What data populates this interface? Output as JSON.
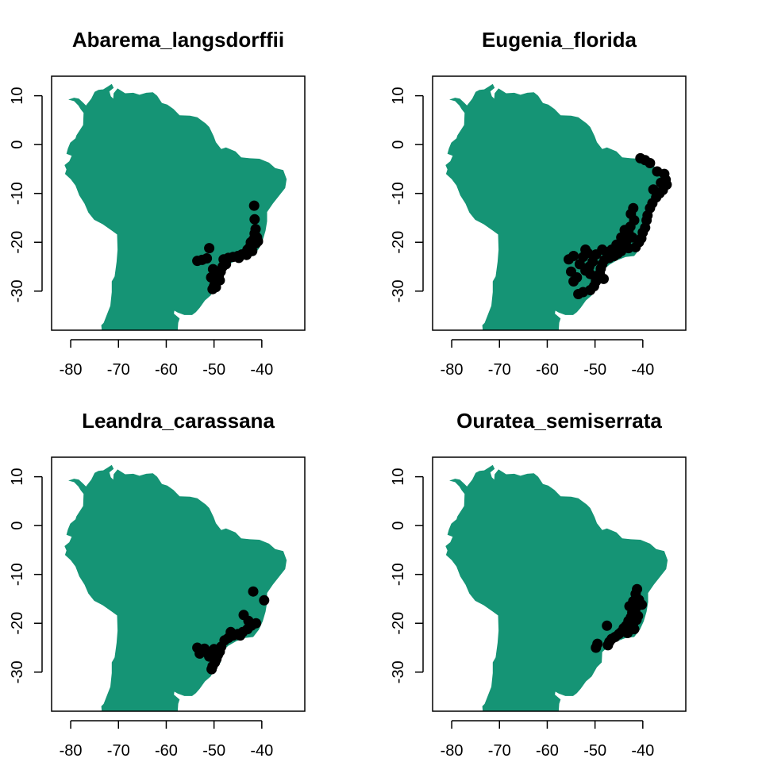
{
  "colors": {
    "land": "#159475",
    "points": "#000000",
    "axes": "#000000",
    "background": "#ffffff"
  },
  "chart_data": [
    {
      "type": "scatter",
      "title": "Abarema_langsdorffii",
      "xlabel": "",
      "ylabel": "",
      "xlim": [
        -84,
        -31
      ],
      "ylim": [
        -38,
        14
      ],
      "xticks": [
        -80,
        -70,
        -60,
        -50,
        -40
      ],
      "yticks": [
        10,
        0,
        -10,
        -20,
        -30
      ],
      "grid": false,
      "background_layer": "land-map",
      "points": [
        [
          -41.6,
          -12.5
        ],
        [
          -41.5,
          -15.3
        ],
        [
          -41.3,
          -17.3
        ],
        [
          -41.5,
          -18.2
        ],
        [
          -41.0,
          -19.0
        ],
        [
          -41.8,
          -19.5
        ],
        [
          -42.3,
          -20.0
        ],
        [
          -41.2,
          -20.2
        ],
        [
          -40.8,
          -19.8
        ],
        [
          -42.5,
          -21.0
        ],
        [
          -43.0,
          -21.5
        ],
        [
          -42.0,
          -21.8
        ],
        [
          -43.5,
          -22.3
        ],
        [
          -44.2,
          -22.5
        ],
        [
          -45.0,
          -22.8
        ],
        [
          -46.0,
          -23.0
        ],
        [
          -47.0,
          -23.2
        ],
        [
          -48.0,
          -23.5
        ],
        [
          -47.5,
          -24.5
        ],
        [
          -48.2,
          -25.0
        ],
        [
          -48.6,
          -26.0
        ],
        [
          -49.0,
          -26.8
        ],
        [
          -49.3,
          -27.5
        ],
        [
          -49.8,
          -28.3
        ],
        [
          -50.0,
          -29.0
        ],
        [
          -50.3,
          -29.6
        ],
        [
          -49.6,
          -29.2
        ],
        [
          -48.8,
          -27.8
        ],
        [
          -50.6,
          -27.2
        ],
        [
          -51.0,
          -21.2
        ],
        [
          -51.5,
          -23.3
        ],
        [
          -52.5,
          -23.6
        ],
        [
          -53.5,
          -23.8
        ],
        [
          -50.2,
          -25.5
        ],
        [
          -44.8,
          -23.2
        ],
        [
          -43.2,
          -22.6
        ]
      ]
    },
    {
      "type": "scatter",
      "title": "Eugenia_florida",
      "xlabel": "",
      "ylabel": "",
      "xlim": [
        -84,
        -31
      ],
      "ylim": [
        -38,
        14
      ],
      "xticks": [
        -80,
        -70,
        -60,
        -50,
        -40
      ],
      "yticks": [
        10,
        0,
        -10,
        -20,
        -30
      ],
      "grid": false,
      "background_layer": "land-map",
      "points": [
        [
          -40.5,
          -2.8
        ],
        [
          -39.5,
          -3.2
        ],
        [
          -38.5,
          -3.8
        ],
        [
          -37.0,
          -5.5
        ],
        [
          -35.5,
          -6.0
        ],
        [
          -35.2,
          -7.2
        ],
        [
          -35.0,
          -8.2
        ],
        [
          -35.8,
          -9.3
        ],
        [
          -36.5,
          -10.0
        ],
        [
          -37.2,
          -10.8
        ],
        [
          -38.0,
          -12.0
        ],
        [
          -38.5,
          -13.0
        ],
        [
          -39.0,
          -14.5
        ],
        [
          -39.2,
          -15.5
        ],
        [
          -39.5,
          -17.0
        ],
        [
          -40.0,
          -18.0
        ],
        [
          -40.3,
          -19.2
        ],
        [
          -40.8,
          -20.0
        ],
        [
          -41.5,
          -21.0
        ],
        [
          -42.0,
          -13.0
        ],
        [
          -42.5,
          -14.2
        ],
        [
          -41.8,
          -15.5
        ],
        [
          -42.6,
          -16.8
        ],
        [
          -43.0,
          -18.0
        ],
        [
          -42.2,
          -19.0
        ],
        [
          -43.5,
          -19.8
        ],
        [
          -44.0,
          -20.5
        ],
        [
          -43.0,
          -21.2
        ],
        [
          -44.5,
          -21.8
        ],
        [
          -45.2,
          -22.3
        ],
        [
          -46.0,
          -22.8
        ],
        [
          -47.0,
          -23.2
        ],
        [
          -48.0,
          -23.6
        ],
        [
          -48.5,
          -24.5
        ],
        [
          -48.8,
          -25.4
        ],
        [
          -49.0,
          -26.4
        ],
        [
          -49.5,
          -27.2
        ],
        [
          -49.8,
          -28.0
        ],
        [
          -50.2,
          -29.0
        ],
        [
          -51.0,
          -29.8
        ],
        [
          -52.5,
          -30.2
        ],
        [
          -53.5,
          -30.6
        ],
        [
          -54.5,
          -28.0
        ],
        [
          -55.0,
          -26.0
        ],
        [
          -55.5,
          -23.5
        ],
        [
          -54.5,
          -22.8
        ],
        [
          -53.2,
          -24.5
        ],
        [
          -52.0,
          -25.8
        ],
        [
          -51.0,
          -26.5
        ],
        [
          -50.5,
          -24.0
        ],
        [
          -49.8,
          -22.5
        ],
        [
          -48.5,
          -21.5
        ],
        [
          -47.5,
          -22.0
        ],
        [
          -46.5,
          -21.5
        ],
        [
          -45.5,
          -20.5
        ],
        [
          -44.5,
          -19.0
        ],
        [
          -43.8,
          -17.5
        ],
        [
          -51.5,
          -22.2
        ],
        [
          -52.0,
          -21.5
        ],
        [
          -52.5,
          -23.0
        ],
        [
          -51.2,
          -25.0
        ],
        [
          -50.0,
          -27.0
        ],
        [
          -48.2,
          -27.5
        ],
        [
          -53.8,
          -27.2
        ],
        [
          -36.2,
          -7.8
        ],
        [
          -37.8,
          -9.2
        ]
      ]
    },
    {
      "type": "scatter",
      "title": "Leandra_carassana",
      "xlabel": "",
      "ylabel": "",
      "xlim": [
        -84,
        -31
      ],
      "ylim": [
        -38,
        14
      ],
      "xticks": [
        -80,
        -70,
        -60,
        -50,
        -40
      ],
      "yticks": [
        10,
        0,
        -10,
        -20,
        -30
      ],
      "grid": false,
      "background_layer": "land-map",
      "points": [
        [
          -41.8,
          -13.5
        ],
        [
          -39.5,
          -15.3
        ],
        [
          -43.8,
          -18.3
        ],
        [
          -41.2,
          -20.0
        ],
        [
          -42.2,
          -20.5
        ],
        [
          -43.0,
          -21.2
        ],
        [
          -44.0,
          -21.8
        ],
        [
          -45.0,
          -22.2
        ],
        [
          -46.0,
          -22.5
        ],
        [
          -47.0,
          -23.0
        ],
        [
          -47.8,
          -23.5
        ],
        [
          -48.5,
          -24.8
        ],
        [
          -48.8,
          -25.8
        ],
        [
          -49.2,
          -26.5
        ],
        [
          -49.5,
          -27.3
        ],
        [
          -49.8,
          -28.0
        ],
        [
          -50.3,
          -28.8
        ],
        [
          -50.5,
          -29.4
        ],
        [
          -51.0,
          -26.8
        ],
        [
          -51.5,
          -26.0
        ],
        [
          -52.0,
          -25.2
        ],
        [
          -52.5,
          -25.8
        ],
        [
          -53.0,
          -26.2
        ],
        [
          -53.5,
          -25.0
        ],
        [
          -50.0,
          -25.3
        ],
        [
          -49.8,
          -27.8
        ],
        [
          -46.5,
          -21.8
        ],
        [
          -44.5,
          -22.5
        ],
        [
          -42.8,
          -19.5
        ]
      ]
    },
    {
      "type": "scatter",
      "title": "Ouratea_semiserrata",
      "xlabel": "",
      "ylabel": "",
      "xlim": [
        -84,
        -31
      ],
      "ylim": [
        -38,
        14
      ],
      "xticks": [
        -80,
        -70,
        -60,
        -50,
        -40
      ],
      "yticks": [
        10,
        0,
        -10,
        -20,
        -30
      ],
      "grid": false,
      "background_layer": "land-map",
      "points": [
        [
          -41.2,
          -13.0
        ],
        [
          -41.5,
          -14.0
        ],
        [
          -40.8,
          -15.2
        ],
        [
          -42.0,
          -15.5
        ],
        [
          -40.2,
          -16.2
        ],
        [
          -41.5,
          -17.0
        ],
        [
          -42.2,
          -17.8
        ],
        [
          -41.0,
          -18.5
        ],
        [
          -42.5,
          -18.8
        ],
        [
          -43.0,
          -19.5
        ],
        [
          -42.0,
          -20.0
        ],
        [
          -43.5,
          -20.5
        ],
        [
          -41.8,
          -21.2
        ],
        [
          -44.0,
          -21.0
        ],
        [
          -44.5,
          -21.8
        ],
        [
          -45.0,
          -22.2
        ],
        [
          -45.8,
          -22.8
        ],
        [
          -46.5,
          -23.2
        ],
        [
          -47.0,
          -23.8
        ],
        [
          -47.3,
          -24.5
        ],
        [
          -47.5,
          -20.5
        ],
        [
          -49.5,
          -24.2
        ],
        [
          -49.8,
          -25.0
        ],
        [
          -43.2,
          -22.0
        ],
        [
          -42.8,
          -16.5
        ],
        [
          -41.3,
          -19.3
        ]
      ]
    }
  ]
}
